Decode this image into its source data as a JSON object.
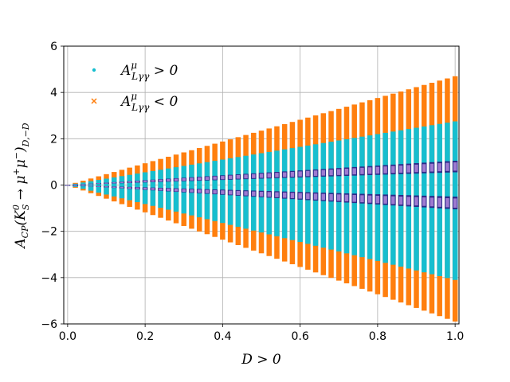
{
  "chart_data": {
    "type": "scatter",
    "xlabel": "D > 0",
    "ylabel_parts": {
      "main": "A",
      "main_sub": "CP",
      "open": "(K",
      "k_sup": "0",
      "k_sub": "S",
      "arrow": " → μ",
      "mu_sup": "+",
      "mu2": "μ",
      "mu2_sup": "−",
      "close": ")",
      "close_sub": "D,−D"
    },
    "xlim": [
      -0.01,
      1.01
    ],
    "ylim": [
      -6,
      6
    ],
    "xticks": [
      0.0,
      0.2,
      0.4,
      0.6,
      0.8,
      1.0
    ],
    "xtick_labels": [
      "0.0",
      "0.2",
      "0.4",
      "0.6",
      "0.8",
      "1.0"
    ],
    "yticks": [
      -6,
      -4,
      -2,
      0,
      2,
      4,
      6
    ],
    "ytick_labels": [
      "−6",
      "−4",
      "−2",
      "0",
      "2",
      "4",
      "6"
    ],
    "grid": true,
    "legend_position": "top-left",
    "legend": [
      {
        "label": "A",
        "sup": "μ",
        "sub": "Lγγ",
        "rel": " > 0",
        "marker": "dot",
        "color": "#17becf"
      },
      {
        "label": "A",
        "sup": "μ",
        "sub": "Lγγ",
        "rel": " < 0",
        "marker": "x",
        "color": "#ff7f0e"
      }
    ],
    "n_columns": 51,
    "x_range": [
      0.0,
      1.0
    ],
    "series": [
      {
        "name": "A^μ_Lγγ < 0",
        "marker": "x",
        "color": "#ff7f0e",
        "envelope_at_x1": [
          -5.9,
          4.7
        ]
      },
      {
        "name": "A^μ_Lγγ > 0",
        "marker": "dot",
        "color": "#17becf",
        "envelope_at_x1": [
          -4.1,
          2.75
        ]
      },
      {
        "color": "#2b2b8a",
        "upper_band_at_x1": [
          0.55,
          1.05
        ],
        "lower_band_at_x1": [
          -1.05,
          -0.5
        ]
      },
      {
        "color": "#9e7ad0",
        "upper_band_at_x1": [
          0.62,
          0.98
        ],
        "lower_band_at_x1": [
          -0.98,
          -0.58
        ]
      }
    ]
  }
}
